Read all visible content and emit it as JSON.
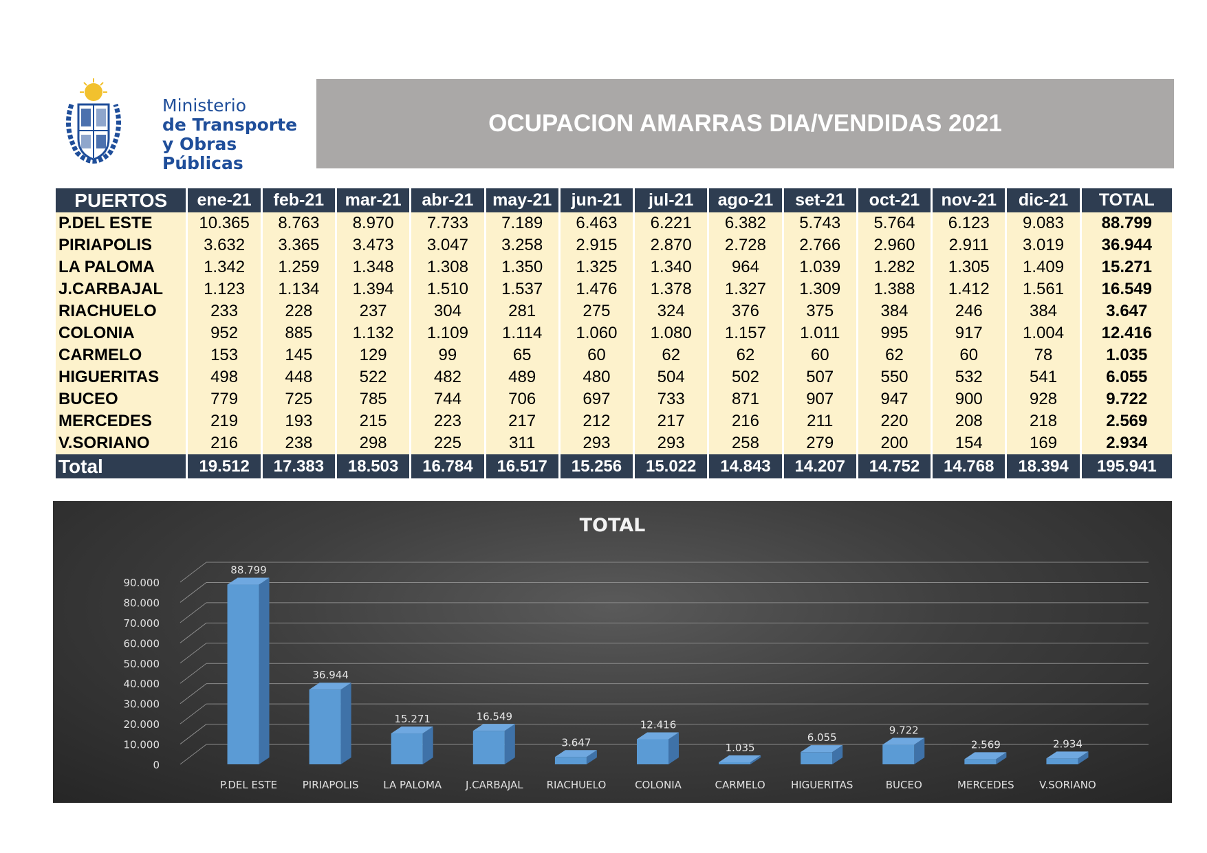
{
  "header": {
    "ministry_line1": "Ministerio",
    "ministry_line2": "de Transporte",
    "ministry_line3": "y Obras Públicas",
    "title": "OCUPACION AMARRAS DIA/VENDIDAS 2021",
    "logo_icon": "uruguay-coat-of-arms-icon"
  },
  "table": {
    "headers": [
      "PUERTOS",
      "ene-21",
      "feb-21",
      "mar-21",
      "abr-21",
      "may-21",
      "jun-21",
      "jul-21",
      "ago-21",
      "set-21",
      "oct-21",
      "nov-21",
      "dic-21",
      "TOTAL"
    ],
    "rows": [
      {
        "port": "P.DEL ESTE",
        "values": [
          "10.365",
          "8.763",
          "8.970",
          "7.733",
          "7.189",
          "6.463",
          "6.221",
          "6.382",
          "5.743",
          "5.764",
          "6.123",
          "9.083"
        ],
        "total": "88.799"
      },
      {
        "port": "PIRIAPOLIS",
        "values": [
          "3.632",
          "3.365",
          "3.473",
          "3.047",
          "3.258",
          "2.915",
          "2.870",
          "2.728",
          "2.766",
          "2.960",
          "2.911",
          "3.019"
        ],
        "total": "36.944"
      },
      {
        "port": "LA PALOMA",
        "values": [
          "1.342",
          "1.259",
          "1.348",
          "1.308",
          "1.350",
          "1.325",
          "1.340",
          "964",
          "1.039",
          "1.282",
          "1.305",
          "1.409"
        ],
        "total": "15.271"
      },
      {
        "port": "J.CARBAJAL",
        "values": [
          "1.123",
          "1.134",
          "1.394",
          "1.510",
          "1.537",
          "1.476",
          "1.378",
          "1.327",
          "1.309",
          "1.388",
          "1.412",
          "1.561"
        ],
        "total": "16.549"
      },
      {
        "port": "RIACHUELO",
        "values": [
          "233",
          "228",
          "237",
          "304",
          "281",
          "275",
          "324",
          "376",
          "375",
          "384",
          "246",
          "384"
        ],
        "total": "3.647"
      },
      {
        "port": "COLONIA",
        "values": [
          "952",
          "885",
          "1.132",
          "1.109",
          "1.114",
          "1.060",
          "1.080",
          "1.157",
          "1.011",
          "995",
          "917",
          "1.004"
        ],
        "total": "12.416"
      },
      {
        "port": "CARMELO",
        "values": [
          "153",
          "145",
          "129",
          "99",
          "65",
          "60",
          "62",
          "62",
          "60",
          "62",
          "60",
          "78"
        ],
        "total": "1.035"
      },
      {
        "port": "HIGUERITAS",
        "values": [
          "498",
          "448",
          "522",
          "482",
          "489",
          "480",
          "504",
          "502",
          "507",
          "550",
          "532",
          "541"
        ],
        "total": "6.055"
      },
      {
        "port": "BUCEO",
        "values": [
          "779",
          "725",
          "785",
          "744",
          "706",
          "697",
          "733",
          "871",
          "907",
          "947",
          "900",
          "928"
        ],
        "total": "9.722"
      },
      {
        "port": "MERCEDES",
        "values": [
          "219",
          "193",
          "215",
          "223",
          "217",
          "212",
          "217",
          "216",
          "211",
          "220",
          "208",
          "218"
        ],
        "total": "2.569"
      },
      {
        "port": "V.SORIANO",
        "values": [
          "216",
          "238",
          "298",
          "225",
          "311",
          "293",
          "293",
          "258",
          "279",
          "200",
          "154",
          "169"
        ],
        "total": "2.934"
      }
    ],
    "footer": {
      "label": "Total",
      "values": [
        "19.512",
        "17.383",
        "18.503",
        "16.784",
        "16.517",
        "15.256",
        "15.022",
        "14.843",
        "14.207",
        "14.752",
        "14.768",
        "18.394"
      ],
      "total": "195.941"
    }
  },
  "chart_data": {
    "type": "bar",
    "title": "TOTAL",
    "categories": [
      "P.DEL ESTE",
      "PIRIAPOLIS",
      "LA PALOMA",
      "J.CARBAJAL",
      "RIACHUELO",
      "COLONIA",
      "CARMELO",
      "HIGUERITAS",
      "BUCEO",
      "MERCEDES",
      "V.SORIANO"
    ],
    "values": [
      88799,
      36944,
      15271,
      16549,
      3647,
      12416,
      1035,
      6055,
      9722,
      2569,
      2934
    ],
    "value_labels": [
      "88.799",
      "36.944",
      "15.271",
      "16.549",
      "3.647",
      "12.416",
      "1.035",
      "6.055",
      "9.722",
      "2.569",
      "2.934"
    ],
    "yticks": [
      "0",
      "10.000",
      "20.000",
      "30.000",
      "40.000",
      "50.000",
      "60.000",
      "70.000",
      "80.000",
      "90.000"
    ],
    "ylim": [
      0,
      90000
    ],
    "grid": true,
    "legend": "none",
    "style": "3d-column",
    "bar_color": "#5b9bd5",
    "background": "#3a3a3a"
  }
}
